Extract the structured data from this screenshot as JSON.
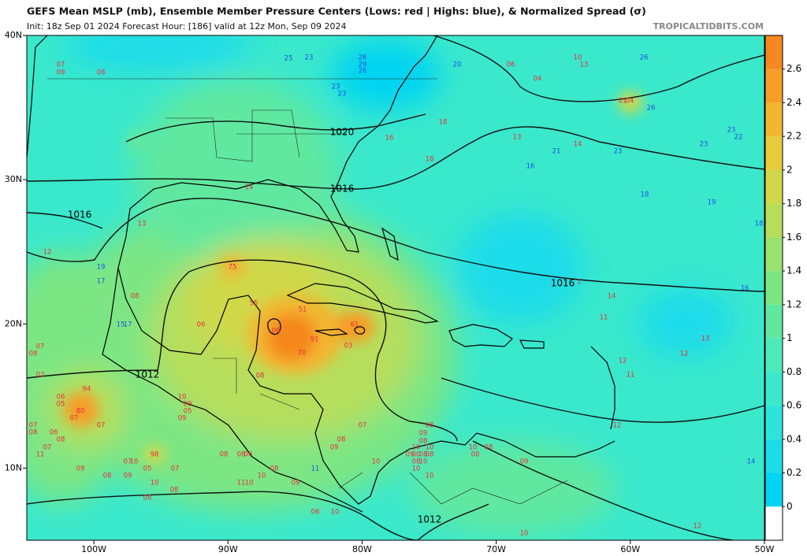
{
  "header": {
    "title": "GEFS Mean MSLP (mb), Ensemble Member Pressure Centers (Lows: red | Highs: blue), & Normalized Spread (σ)",
    "subtitle": "Init: 18z Sep 01 2024   Forecast Hour: [186]   valid at 12z Mon, Sep 09 2024",
    "credit": "TROPICALTIDBITS.COM"
  },
  "map": {
    "lon_lim": [
      -105,
      -50
    ],
    "lat_lim": [
      5,
      40
    ],
    "lon_ticks": [
      {
        "value": -100,
        "label": "100W"
      },
      {
        "value": -90,
        "label": "90W"
      },
      {
        "value": -80,
        "label": "80W"
      },
      {
        "value": -70,
        "label": "70W"
      },
      {
        "value": -60,
        "label": "60W"
      },
      {
        "value": -50,
        "label": "50W"
      }
    ],
    "lat_ticks": [
      {
        "value": 40,
        "label": "40N"
      },
      {
        "value": 30,
        "label": "30N"
      },
      {
        "value": 20,
        "label": "20N"
      },
      {
        "value": 10,
        "label": "10N"
      }
    ],
    "isobar_labels": [
      "1020",
      "1016",
      "1016",
      "1016",
      "1012",
      "1012"
    ],
    "low_color": "#e8303a",
    "high_color": "#2050e0",
    "low_centers": [
      "07",
      "09",
      "08",
      "18",
      "16",
      "18",
      "13",
      "14",
      "06",
      "04",
      "10",
      "13",
      "04",
      "01",
      "14",
      "13",
      "12",
      "75",
      "08",
      "55",
      "51",
      "06",
      "06",
      "61",
      "91",
      "70",
      "03",
      "07",
      "08",
      "02",
      "08",
      "94",
      "06",
      "05",
      "80",
      "07",
      "07",
      "10",
      "09",
      "05",
      "09",
      "07",
      "08",
      "06",
      "08",
      "07",
      "11",
      "98",
      "07",
      "10",
      "09",
      "08",
      "09",
      "05",
      "07",
      "08",
      "08",
      "06",
      "10",
      "08",
      "08",
      "11",
      "10",
      "08",
      "10",
      "09",
      "06",
      "10",
      "09",
      "08",
      "07",
      "08",
      "09",
      "08",
      "10",
      "10",
      "09",
      "00",
      "08",
      "08",
      "08",
      "10",
      "10",
      "10",
      "10",
      "10",
      "08",
      "08",
      "09",
      "10",
      "1",
      "14",
      "11",
      "12",
      "11",
      "12",
      "13",
      "12",
      "12"
    ],
    "high_centers": [
      "25",
      "23",
      "26",
      "29",
      "26",
      "23",
      "23",
      "20",
      "26",
      "26",
      "21",
      "23",
      "23",
      "23",
      "22",
      "16",
      "18",
      "19",
      "18",
      "19",
      "17",
      "15",
      "17",
      "16",
      "11",
      "14"
    ]
  },
  "colorbar": {
    "lim": [
      -0.2,
      2.8
    ],
    "ticks": [
      0,
      0.2,
      0.4,
      0.6,
      0.8,
      1,
      1.2,
      1.4,
      1.6,
      1.8,
      2,
      2.2,
      2.4,
      2.6
    ],
    "colors": [
      "#00d4f2",
      "#1cdcea",
      "#2ce4dc",
      "#3ae8cc",
      "#4cebb8",
      "#60e8a0",
      "#7ce684",
      "#9ae270",
      "#b6de5c",
      "#d0d84a",
      "#e6cc3c",
      "#f2b630",
      "#f69e28",
      "#f5881e"
    ]
  }
}
